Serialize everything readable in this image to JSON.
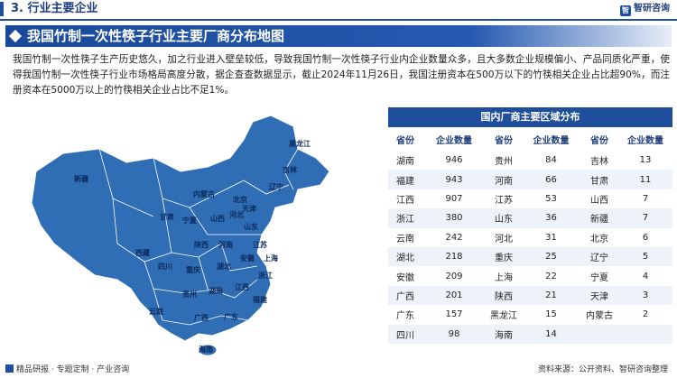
{
  "section": {
    "title": "3. 行业主要企业"
  },
  "brand": {
    "logo_glyph": "智",
    "name": "智研咨询"
  },
  "banner": {
    "title": "我国竹制一次性筷子行业主要厂商分布地图"
  },
  "intro": "我国竹制一次性筷子生产历史悠久，加之行业进入壁垒较低，导致我国竹制一次性筷子行业内企业数量众多，且大多数企业规模偏小、产品同质化严重，使得我国竹制一次性筷子行业市场格局高度分散，据企查查数据显示，截止2024年11月26日，我国注册资本在500万以下的竹筷相关企业占比超90%，而注册资本在5000万以上的竹筷相关企业占比不足1%。",
  "map": {
    "fill_color": "#2f6db5",
    "labels": [
      "黑龙江",
      "吉林",
      "辽宁",
      "新疆",
      "内蒙古",
      "北京",
      "天津",
      "河北",
      "甘肃",
      "宁夏",
      "山西",
      "山东",
      "陕西",
      "河南",
      "江苏",
      "安徽",
      "上海",
      "湖北",
      "四川",
      "重庆",
      "浙江",
      "西藏",
      "贵州",
      "湖南",
      "江西",
      "福建",
      "云南",
      "广西",
      "广东",
      "海南"
    ]
  },
  "table": {
    "title": "国内厂商主要区域分布",
    "headers": [
      "省份",
      "企业数量",
      "省份",
      "企业数量",
      "省份",
      "企业数量"
    ],
    "rows": [
      [
        "湖南",
        "946",
        "贵州",
        "84",
        "吉林",
        "13"
      ],
      [
        "福建",
        "943",
        "河南",
        "66",
        "甘肃",
        "11"
      ],
      [
        "江西",
        "907",
        "江苏",
        "53",
        "山西",
        "7"
      ],
      [
        "浙江",
        "380",
        "山东",
        "36",
        "新疆",
        "7"
      ],
      [
        "云南",
        "242",
        "河北",
        "31",
        "北京",
        "6"
      ],
      [
        "湖北",
        "218",
        "重庆",
        "25",
        "辽宁",
        "5"
      ],
      [
        "安徽",
        "209",
        "上海",
        "22",
        "宁夏",
        "4"
      ],
      [
        "广西",
        "201",
        "陕西",
        "21",
        "天津",
        "3"
      ],
      [
        "广东",
        "157",
        "黑龙江",
        "15",
        "内蒙古",
        "2"
      ],
      [
        "四川",
        "98",
        "海南",
        "14",
        "",
        ""
      ]
    ]
  },
  "footer": {
    "left": "精品研报 · 专题定制 · 产业咨询",
    "right": "资料来源：公开资料、智研咨询整理"
  }
}
